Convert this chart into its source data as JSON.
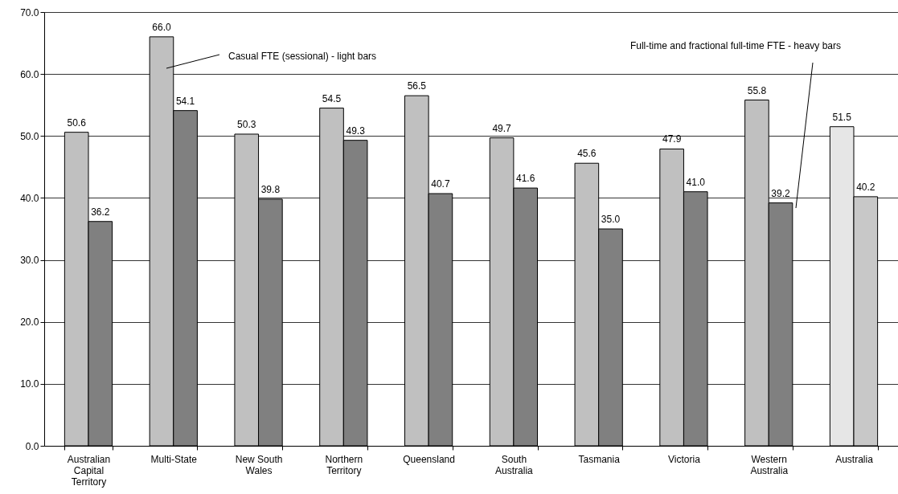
{
  "chart_data": {
    "type": "bar",
    "categories": [
      "Australian Capital Territory",
      "Multi-State",
      "New South Wales",
      "Northern Territory",
      "Queensland",
      "South Australia",
      "Tasmania",
      "Victoria",
      "Western Australia",
      "Australia"
    ],
    "series": [
      {
        "colors": [
          "#c0c0c0",
          "#c0c0c0",
          "#c0c0c0",
          "#c0c0c0",
          "#c0c0c0",
          "#c0c0c0",
          "#c0c0c0",
          "#c0c0c0",
          "#c0c0c0",
          "#e6e6e6"
        ],
        "values": [
          50.6,
          66.0,
          50.3,
          54.5,
          56.5,
          49.7,
          45.6,
          47.9,
          55.8,
          51.5
        ],
        "value_labels": [
          "50.6",
          "66.0",
          "50.3",
          "54.5",
          "56.5",
          "49.7",
          "45.6",
          "47.9",
          "55.8",
          "51.5"
        ]
      },
      {
        "colors": [
          "#808080",
          "#808080",
          "#808080",
          "#808080",
          "#808080",
          "#808080",
          "#808080",
          "#808080",
          "#808080",
          "#c8c8c8"
        ],
        "values": [
          36.2,
          54.1,
          39.8,
          49.3,
          40.7,
          41.6,
          35.0,
          41.0,
          39.2,
          40.2
        ],
        "value_labels": [
          "36.2",
          "54.1",
          "39.8",
          "49.3",
          "40.7",
          "41.6",
          "35.0",
          "41.0",
          "39.2",
          "40.2"
        ]
      }
    ],
    "ylim": [
      0,
      70
    ],
    "yticks": [
      {
        "value": 0,
        "label": "0.0"
      },
      {
        "value": 10,
        "label": "10.0"
      },
      {
        "value": 20,
        "label": "20.0"
      },
      {
        "value": 30,
        "label": "30.0"
      },
      {
        "value": 40,
        "label": "40.0"
      },
      {
        "value": 50,
        "label": "50.0"
      },
      {
        "value": 60,
        "label": "60.0"
      },
      {
        "value": 70,
        "label": "70.0"
      }
    ],
    "grid": "y",
    "annotations": [
      "Casual FTE (sessional) - light bars",
      "Full-time and fractional full-time FTE - heavy bars"
    ]
  }
}
